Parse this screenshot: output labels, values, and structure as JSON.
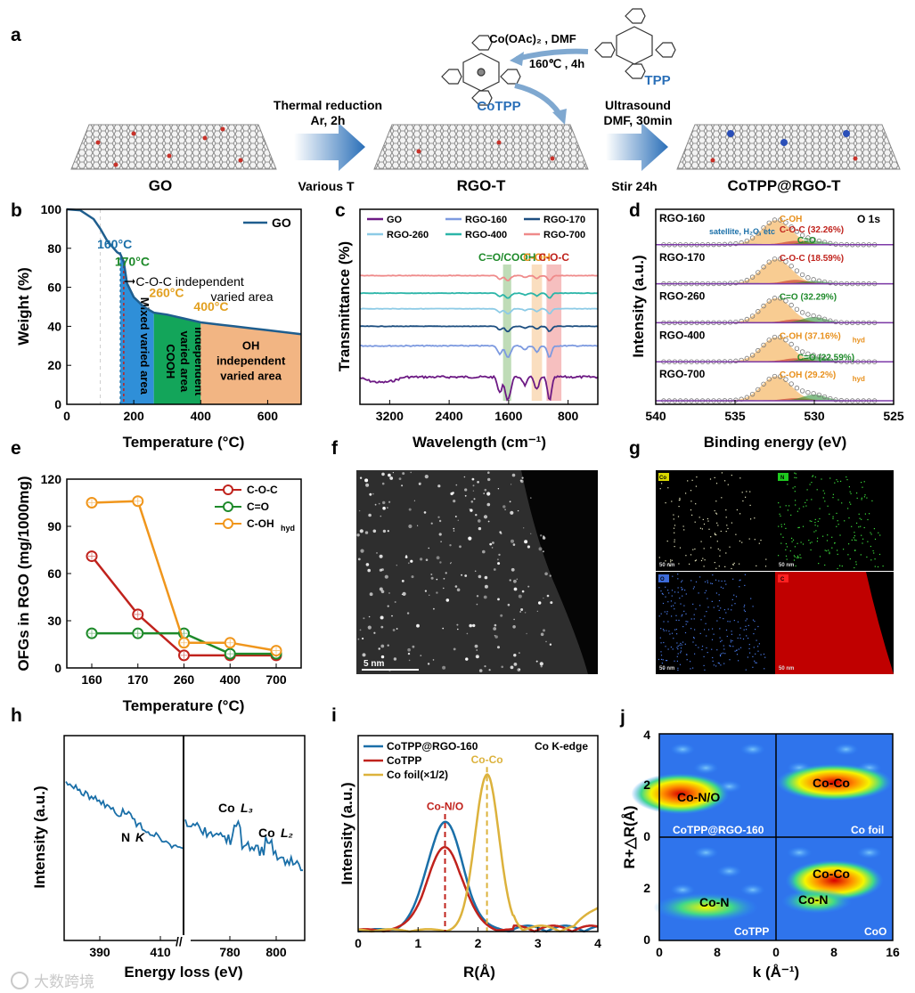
{
  "panel_labels": [
    "a",
    "b",
    "c",
    "d",
    "e",
    "f",
    "g",
    "h",
    "i",
    "j"
  ],
  "scheme": {
    "go_label": "GO",
    "rgo_label": "RGO-T",
    "final_label": "CoTPP@RGO-T",
    "step1_line1": "Thermal reduction",
    "step1_line2": "Ar,  2h",
    "step1_below": "Various T",
    "coac_label": "Co(OAc)₂ , DMF",
    "cond_label": "160℃ , 4h",
    "tpp_label": "TPP",
    "cotpp_label": "CoTPP",
    "step2_line1": "Ultrasound",
    "step2_line2": "DMF,  30min",
    "step2_below": "Stir 24h"
  },
  "tem_f": {
    "scale_text": "5 nm"
  },
  "eds_g": {
    "scale_texts": [
      "50 nm",
      "50 nm",
      "50 nm",
      "50 nm"
    ],
    "tags": [
      "Co",
      "N",
      "O",
      "C"
    ]
  },
  "watermark": "大数跨境",
  "chart_data": [
    {
      "panel": "b",
      "type": "line",
      "xlabel": "Temperature (°C)",
      "ylabel": "Weight (%)",
      "xlim": [
        0,
        700
      ],
      "ylim": [
        0,
        100
      ],
      "xticks": [
        "0",
        "200",
        "400",
        "600"
      ],
      "yticks": [
        "0",
        "20",
        "40",
        "60",
        "80",
        "100"
      ],
      "series": [
        {
          "name": "GO",
          "x": [
            0,
            40,
            80,
            100,
            120,
            140,
            150,
            160,
            170,
            180,
            200,
            230,
            260,
            300,
            350,
            400,
            450,
            500,
            550,
            600,
            650,
            700
          ],
          "y": [
            100,
            99.5,
            95,
            90,
            84,
            80,
            78,
            77,
            73,
            62,
            55,
            50,
            47,
            46,
            44,
            42,
            41,
            40,
            39,
            38,
            37,
            36
          ]
        }
      ],
      "markers": [
        {
          "x": 160,
          "label": "160°C",
          "color": "#1a6fa8"
        },
        {
          "x": 170,
          "label": "170°C",
          "color": "#1e8a2a"
        },
        {
          "x": 260,
          "label": "260°C",
          "color": "#e2a020"
        },
        {
          "x": 400,
          "label": "400°C",
          "color": "#e2a020"
        }
      ],
      "annotation": [
        "C-O-C independent",
        "varied area"
      ],
      "regions": [
        {
          "x0": 160,
          "x1": 260,
          "label": "Mixed varied area",
          "color": "#2f8fd8"
        },
        {
          "x0": 260,
          "x1": 400,
          "label": [
            "COOH",
            "varied area",
            "independent"
          ],
          "color": "#13a55a"
        },
        {
          "x0": 400,
          "x1": 700,
          "label": [
            "OH",
            "independent",
            "varied area"
          ],
          "color": "#f2b583"
        }
      ]
    },
    {
      "panel": "c",
      "type": "line",
      "xlabel": "Wavelength (cm⁻¹)",
      "ylabel": "Transmittance (%)",
      "xlim": [
        3600,
        400
      ],
      "xticks": [
        "3200",
        "2400",
        "1600",
        "800"
      ],
      "series": [
        {
          "name": "GO",
          "color": "#6d1a84",
          "offset": 0.14
        },
        {
          "name": "RGO-160",
          "color": "#7d9ae0",
          "offset": 0.3
        },
        {
          "name": "RGO-170",
          "color": "#1c4e80",
          "offset": 0.4
        },
        {
          "name": "RGO-260",
          "color": "#8dcbe6",
          "offset": 0.49
        },
        {
          "name": "RGO-400",
          "color": "#2bb5a8",
          "offset": 0.57
        },
        {
          "name": "RGO-700",
          "color": "#ef8a8a",
          "offset": 0.66
        }
      ],
      "bands": [
        {
          "center": 1620,
          "width": 110,
          "label": "C=O/COOH",
          "color": "#8ac07c"
        },
        {
          "center": 1220,
          "width": 140,
          "label": "C-OH",
          "color": "#f6c28a"
        },
        {
          "center": 990,
          "width": 200,
          "label": "C-O-C",
          "color": "#ef8a8a"
        }
      ]
    },
    {
      "panel": "d",
      "type": "line",
      "xlabel": "Binding energy (eV)",
      "ylabel": "Intensity (a.u.)",
      "xlim": [
        540,
        525
      ],
      "xticks": [
        "540",
        "535",
        "530",
        "525"
      ],
      "title": "O 1s",
      "stacks": [
        {
          "name": "RGO-160",
          "labels": [
            {
              "t": "C-OH",
              "c": "#e8901c"
            },
            {
              "t": "C-O-C (32.26%)",
              "c": "#c0221c"
            },
            {
              "t": "C=O",
              "c": "#1e8a2a"
            }
          ],
          "extra": "satellite, H₂O, etc"
        },
        {
          "name": "RGO-170",
          "labels": [
            {
              "t": "C-O-C (18.59%)",
              "c": "#c0221c"
            }
          ]
        },
        {
          "name": "RGO-260",
          "labels": [
            {
              "t": "C=O (32.29%)",
              "c": "#1e8a2a"
            }
          ]
        },
        {
          "name": "RGO-400",
          "labels": [
            {
              "t": "C-OH (37.16%)",
              "c": "#e8901c"
            },
            {
              "t": "hyd",
              "c": "#e8901c"
            },
            {
              "t": "C=O (22.59%)",
              "c": "#1e8a2a"
            }
          ]
        },
        {
          "name": "RGO-700",
          "labels": [
            {
              "t": "C-OH (29.2%)",
              "c": "#e8901c"
            },
            {
              "t": "hyd",
              "c": "#e8901c"
            }
          ]
        }
      ]
    },
    {
      "panel": "e",
      "type": "line",
      "xlabel": "Temperature (°C)",
      "ylabel": "OFGs in RGO (mg/1000mg)",
      "categories": [
        "160",
        "170",
        "260",
        "400",
        "700"
      ],
      "ylim": [
        0,
        120
      ],
      "yticks": [
        "0",
        "30",
        "60",
        "90",
        "120"
      ],
      "series": [
        {
          "name": "C-O-C",
          "color": "#c0221c",
          "values": [
            71,
            34,
            8,
            8,
            8
          ]
        },
        {
          "name": "C=O",
          "color": "#1e8a2a",
          "values": [
            22,
            22,
            22,
            9,
            9
          ]
        },
        {
          "name": "C-OH",
          "sub": "hyd",
          "color": "#f0961c",
          "values": [
            105,
            106,
            16,
            16,
            11
          ]
        }
      ]
    },
    {
      "panel": "h",
      "type": "line",
      "xlabel": "Energy loss (eV)",
      "ylabel": "Intensity (a.u.)",
      "xticks_left": [
        "390",
        "410"
      ],
      "xticks_right": [
        "780",
        "800"
      ],
      "peaks": [
        {
          "label": "N",
          "italic": "K"
        },
        {
          "label": "Co",
          "italic": "L₃"
        },
        {
          "label": "Co",
          "italic": "L₂"
        }
      ]
    },
    {
      "panel": "i",
      "type": "line",
      "xlabel": "R(Å)",
      "ylabel": "Intensity (a.u.)",
      "xlim": [
        0,
        4
      ],
      "xticks": [
        "0",
        "1",
        "2",
        "3",
        "4"
      ],
      "title": "Co K-edge",
      "series": [
        {
          "name": "CoTPP@RGO-160",
          "color": "#1a6fa8",
          "peak_R": 1.45,
          "height": 0.55
        },
        {
          "name": "CoTPP",
          "color": "#c0221c",
          "peak_R": 1.45,
          "height": 0.42
        },
        {
          "name": "Co foil(×1/2)",
          "color": "#dcb23c",
          "peak_R": 2.15,
          "height": 0.8
        }
      ],
      "markers": [
        {
          "x": 1.45,
          "label": "Co-N/O",
          "color": "#c0221c"
        },
        {
          "x": 2.15,
          "label": "Co-Co",
          "color": "#dcb23c"
        }
      ]
    },
    {
      "panel": "j",
      "type": "heatmap",
      "xlabel": "k (Å⁻¹)",
      "ylabel": "R+△R(Å)",
      "xticks": [
        "0",
        "8",
        "0",
        "8",
        "16"
      ],
      "yticks_top": [
        "4",
        "2",
        "0"
      ],
      "yticks_bottom": [
        "2",
        "0"
      ],
      "quadrants": [
        {
          "name": "CoTPP@RGO-160",
          "label": "Co-N/O"
        },
        {
          "name": "Co foil",
          "label": "Co-Co"
        },
        {
          "name": "CoTPP",
          "label": "Co-N"
        },
        {
          "name": "CoO",
          "labels": [
            "Co-Co",
            "Co-N"
          ]
        }
      ]
    }
  ]
}
